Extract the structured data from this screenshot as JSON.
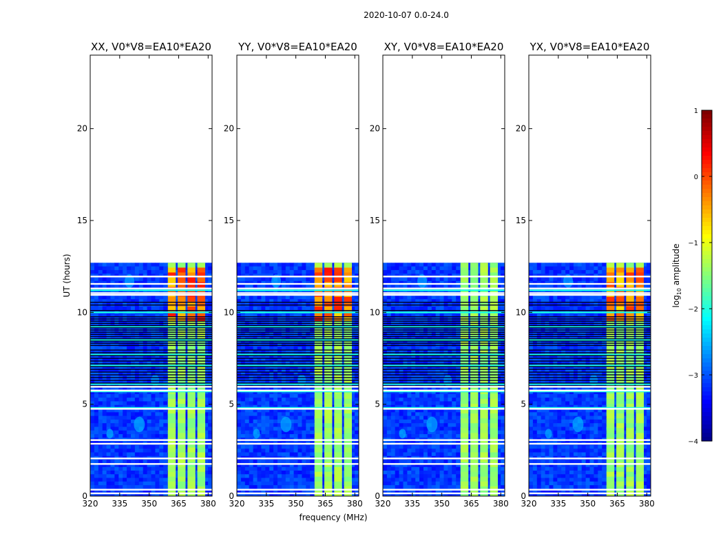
{
  "figure": {
    "suptitle": "2020-10-07 0.0-24.0",
    "xlabel": "frequency (MHz)",
    "ylabel": "UT (hours)"
  },
  "colorbar": {
    "label": "log10 amplitude",
    "label_main": "log",
    "label_sub": "10",
    "label_rest": " amplitude",
    "range": [
      -4,
      1
    ],
    "ticks": [
      "1",
      "0",
      "−1",
      "−2",
      "−3",
      "−4"
    ],
    "tick_values": [
      1,
      0,
      -1,
      -2,
      -3,
      -4
    ],
    "colormap": [
      "#00007f",
      "#0000ff",
      "#007fff",
      "#00ffff",
      "#7fff7f",
      "#ffff00",
      "#ff7f00",
      "#ff0000",
      "#7f0000"
    ]
  },
  "chart_data": [
    {
      "type": "heatmap",
      "title": "XX, V0*V8=EA10*EA20",
      "xlabel": "frequency (MHz)",
      "ylabel": "UT (hours)",
      "xlim": [
        320,
        382
      ],
      "ylim": [
        0,
        24
      ],
      "xticks": [
        320,
        335,
        350,
        365,
        380
      ],
      "yticks": [
        0,
        5,
        10,
        15,
        20
      ],
      "data_extent_hours": [
        0,
        12.7
      ],
      "background_log10_amplitude": -3.1,
      "rfi_bands_mhz": [
        [
          359.5,
          363.5
        ],
        [
          364.5,
          368.5
        ],
        [
          369.5,
          373.5
        ],
        [
          374.5,
          378.5
        ]
      ],
      "rfi_log10_amplitude_range": [
        -1.5,
        0.3
      ]
    },
    {
      "type": "heatmap",
      "title": "YY, V0*V8=EA10*EA20",
      "xlabel": "frequency (MHz)",
      "ylabel": "UT (hours)",
      "xlim": [
        320,
        382
      ],
      "ylim": [
        0,
        24
      ],
      "xticks": [
        320,
        335,
        350,
        365,
        380
      ],
      "yticks": [
        0,
        5,
        10,
        15,
        20
      ],
      "data_extent_hours": [
        0,
        12.7
      ],
      "background_log10_amplitude": -3.1,
      "rfi_bands_mhz": [
        [
          359.5,
          363.5
        ],
        [
          364.5,
          368.5
        ],
        [
          369.5,
          373.5
        ],
        [
          374.5,
          378.5
        ]
      ],
      "rfi_log10_amplitude_range": [
        -1.5,
        0.3
      ]
    },
    {
      "type": "heatmap",
      "title": "XY, V0*V8=EA10*EA20",
      "xlabel": "frequency (MHz)",
      "ylabel": "UT (hours)",
      "xlim": [
        320,
        382
      ],
      "ylim": [
        0,
        24
      ],
      "xticks": [
        320,
        335,
        350,
        365,
        380
      ],
      "yticks": [
        0,
        5,
        10,
        15,
        20
      ],
      "data_extent_hours": [
        0,
        12.7
      ],
      "background_log10_amplitude": -3.1,
      "rfi_bands_mhz": [
        [
          359.5,
          363.5
        ],
        [
          364.5,
          368.5
        ],
        [
          369.5,
          373.5
        ],
        [
          374.5,
          378.5
        ]
      ],
      "rfi_log10_amplitude_range": [
        -1.5,
        -0.5
      ]
    },
    {
      "type": "heatmap",
      "title": "YX, V0*V8=EA10*EA20",
      "xlabel": "frequency (MHz)",
      "ylabel": "UT (hours)",
      "xlim": [
        320,
        382
      ],
      "ylim": [
        0,
        24
      ],
      "xticks": [
        320,
        335,
        350,
        365,
        380
      ],
      "yticks": [
        0,
        5,
        10,
        15,
        20
      ],
      "data_extent_hours": [
        0,
        12.7
      ],
      "background_log10_amplitude": -3.1,
      "rfi_bands_mhz": [
        [
          359.5,
          363.5
        ],
        [
          364.5,
          368.5
        ],
        [
          369.5,
          373.5
        ],
        [
          374.5,
          378.5
        ]
      ],
      "rfi_log10_amplitude_range": [
        -1.5,
        0.2
      ]
    }
  ]
}
